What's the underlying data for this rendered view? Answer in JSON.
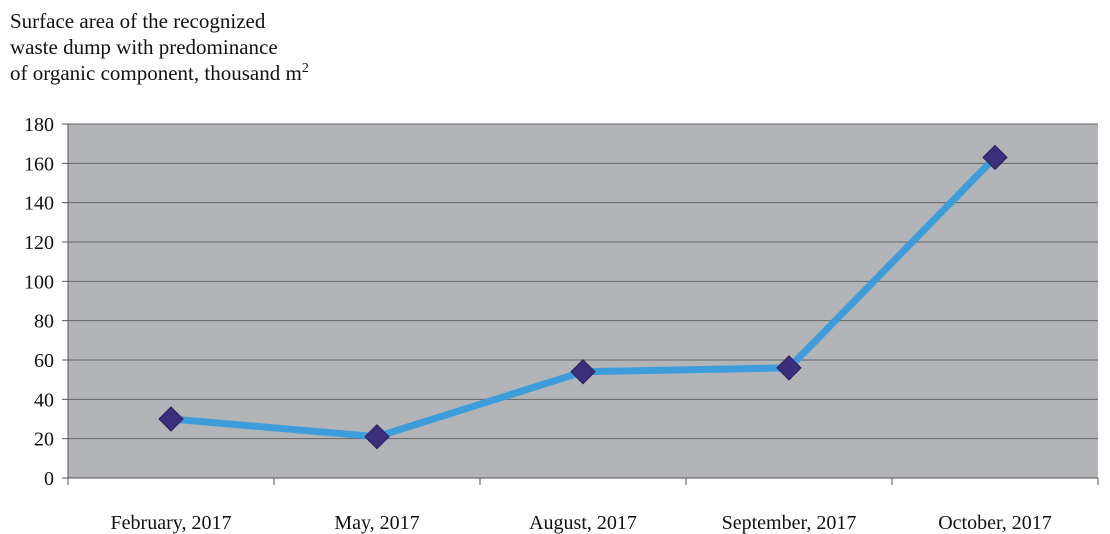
{
  "chart_data": {
    "type": "line",
    "title": "",
    "ylabel_lines": [
      "Surface area of the recognized",
      "waste dump with predominance",
      "of organic component, thousand m"
    ],
    "ylabel_superscript": "2",
    "xlabel": "",
    "categories": [
      "February, 2017",
      "May, 2017",
      "August, 2017",
      "September, 2017",
      "October, 2017"
    ],
    "series": [
      {
        "values": [
          30,
          21,
          54,
          56,
          163
        ]
      }
    ],
    "ylim": [
      0,
      180
    ],
    "yticks": [
      0,
      20,
      40,
      60,
      80,
      100,
      120,
      140,
      160,
      180
    ],
    "grid": true,
    "legend": "none",
    "colors": {
      "plot_background": "#b2b4b7",
      "line": "#3d9ddb",
      "marker": "#3b2e7a",
      "gridline": "#666666"
    }
  }
}
